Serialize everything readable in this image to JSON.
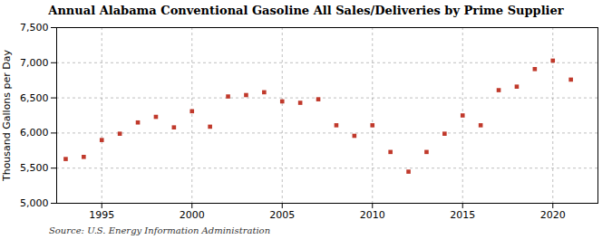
{
  "chart_data": {
    "type": "scatter",
    "title": "Annual Alabama Conventional Gasoline All Sales/Deliveries by Prime Supplier",
    "ylabel": "Thousand Gallons per Day",
    "source": "Source: U.S. Energy Information Administration",
    "x": [
      1993,
      1994,
      1995,
      1996,
      1997,
      1998,
      1999,
      2000,
      2001,
      2002,
      2003,
      2004,
      2005,
      2006,
      2007,
      2008,
      2009,
      2010,
      2011,
      2012,
      2013,
      2014,
      2015,
      2016,
      2017,
      2018,
      2019,
      2020,
      2021
    ],
    "values": [
      5630,
      5660,
      5900,
      5990,
      6150,
      6230,
      6080,
      6310,
      6090,
      6520,
      6540,
      6580,
      6450,
      6430,
      6480,
      6110,
      5960,
      6110,
      5730,
      5450,
      5730,
      5990,
      6250,
      6110,
      6610,
      6660,
      6910,
      7030,
      6760
    ],
    "color": "#c0392b",
    "marker": "square",
    "xlim": [
      1992.5,
      2022.5
    ],
    "xticks": [
      1995,
      2000,
      2005,
      2010,
      2015,
      2020
    ],
    "ylim": [
      5000,
      7500
    ],
    "yticks": [
      {
        "value": 5000,
        "label": "5,000"
      },
      {
        "value": 5500,
        "label": "5,500"
      },
      {
        "value": 6000,
        "label": "6,000"
      },
      {
        "value": 6500,
        "label": "6,500"
      },
      {
        "value": 7000,
        "label": "7,000"
      },
      {
        "value": 7500,
        "label": "7,500"
      }
    ],
    "grid": true
  }
}
